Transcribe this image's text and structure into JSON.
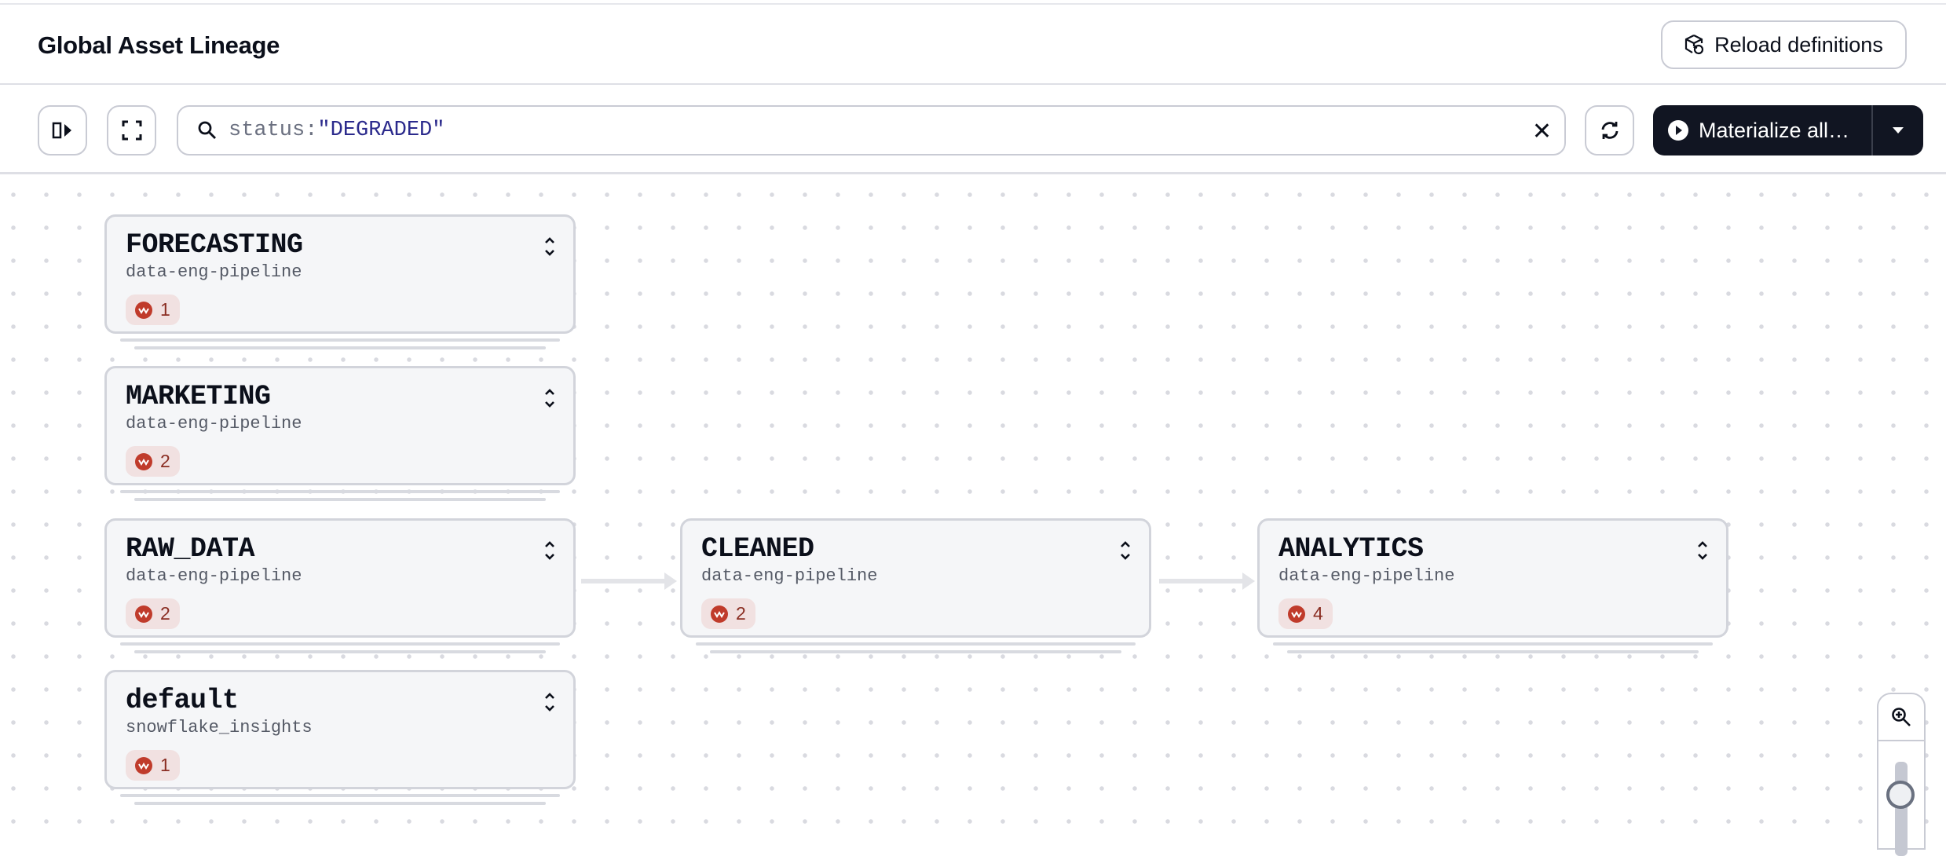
{
  "header": {
    "title": "Global Asset Lineage",
    "reload_label": "Reload definitions"
  },
  "toolbar": {
    "search_key": "status:",
    "search_value": "\"DEGRADED\"",
    "materialize_label": "Materialize all…"
  },
  "colors": {
    "primary_button": "#111522",
    "degraded": "#c03b2b",
    "badge_bg": "#f1e1e1"
  },
  "groups": [
    {
      "name": "FORECASTING",
      "location": "data-eng-pipeline",
      "degraded_count": "1"
    },
    {
      "name": "MARKETING",
      "location": "data-eng-pipeline",
      "degraded_count": "2"
    },
    {
      "name": "RAW_DATA",
      "location": "data-eng-pipeline",
      "degraded_count": "2"
    },
    {
      "name": "default",
      "location": "snowflake_insights",
      "degraded_count": "1"
    },
    {
      "name": "CLEANED",
      "location": "data-eng-pipeline",
      "degraded_count": "2"
    },
    {
      "name": "ANALYTICS",
      "location": "data-eng-pipeline",
      "degraded_count": "4"
    }
  ],
  "edges": [
    {
      "from": "RAW_DATA",
      "to": "CLEANED"
    },
    {
      "from": "CLEANED",
      "to": "ANALYTICS"
    }
  ]
}
